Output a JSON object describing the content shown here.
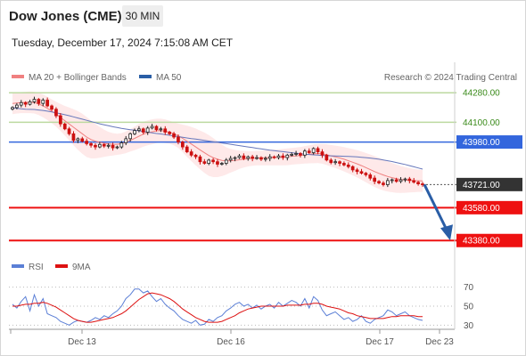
{
  "header": {
    "title": "Dow Jones (CME)",
    "timeframe": "30 MIN",
    "datetime": "Tuesday, December 17, 2024 7:15:08 AM CET"
  },
  "legend": {
    "bollinger": "MA 20 + Bollinger Bands",
    "ma50": "MA 50",
    "rsi": "RSI",
    "ma9": "9MA"
  },
  "copyright": "Research © 2024 Trading Central",
  "colors": {
    "up": "#222222",
    "down": "#cc1111",
    "ma20": "#f08080",
    "band": "#fde2e2",
    "ma50": "#6677bb",
    "support": "#ee1111",
    "resistance_green": "#bcd9a0",
    "resistance_blue": "#3366dd",
    "current": "#333333",
    "arrow": "#2a5ea6",
    "rsi": "#5b7fd6",
    "rsi_ma": "#dd1111"
  },
  "chart_data": [
    {
      "type": "candlestick",
      "ylim": [
        43300,
        44330
      ],
      "x_ticks": [
        "Dec 13",
        "Dec 16",
        "Dec 17",
        "Dec 23"
      ],
      "levels": [
        {
          "label": "44280.00",
          "value": 44280,
          "kind": "resistance_green"
        },
        {
          "label": "44100.00",
          "value": 44100,
          "kind": "resistance_green"
        },
        {
          "label": "43980.00",
          "value": 43980,
          "kind": "resistance_blue"
        },
        {
          "label": "43721.00",
          "value": 43721,
          "kind": "current"
        },
        {
          "label": "43580.00",
          "value": 43580,
          "kind": "support"
        },
        {
          "label": "43380.00",
          "value": 43380,
          "kind": "support"
        }
      ],
      "forecast": {
        "from": 43721,
        "to": 43380,
        "direction": "down"
      },
      "close": [
        44190,
        44205,
        44220,
        44210,
        44225,
        44240,
        44215,
        44235,
        44200,
        44180,
        44140,
        44090,
        44060,
        44030,
        43990,
        44000,
        43985,
        43970,
        43960,
        43950,
        43965,
        43955,
        43960,
        43945,
        43950,
        43975,
        44000,
        44030,
        44050,
        44060,
        44040,
        44065,
        44075,
        44055,
        44060,
        44040,
        44030,
        44010,
        43980,
        43950,
        43920,
        43900,
        43890,
        43860,
        43850,
        43870,
        43860,
        43845,
        43850,
        43870,
        43880,
        43885,
        43895,
        43880,
        43890,
        43880,
        43885,
        43875,
        43880,
        43890,
        43885,
        43895,
        43885,
        43900,
        43905,
        43910,
        43900,
        43925,
        43915,
        43940,
        43920,
        43900,
        43870,
        43855,
        43860,
        43850,
        43840,
        43830,
        43810,
        43800,
        43790,
        43780,
        43760,
        43740,
        43730,
        43720,
        43745,
        43750,
        43740,
        43750,
        43755,
        43745,
        43735,
        43725,
        43721
      ],
      "ma20": [
        44215,
        44218,
        44220,
        44221,
        44222,
        44220,
        44212,
        44200,
        44185,
        44168,
        44150,
        44130,
        44110,
        44090,
        44070,
        44050,
        44030,
        44010,
        43995,
        43985,
        43978,
        43972,
        43968,
        43966,
        43966,
        43970,
        43978,
        43990,
        44002,
        44015,
        44028,
        44036,
        44042,
        44048,
        44050,
        44046,
        44040,
        44030,
        44018,
        44002,
        43985,
        43968,
        43950,
        43932,
        43915,
        43898,
        43885,
        43875,
        43868,
        43865,
        43866,
        43868,
        43872,
        43875,
        43878,
        43880,
        43882,
        43883,
        43884,
        43885,
        43886,
        43887,
        43888,
        43890,
        43893,
        43896,
        43898,
        43902,
        43905,
        43908,
        43910,
        43908,
        43903,
        43896,
        43890,
        43883,
        43875,
        43866,
        43857,
        43847,
        43836,
        43824,
        43812,
        43800,
        43789,
        43779,
        43770,
        43763,
        43757,
        43752,
        43749,
        43747,
        43745,
        43744,
        43743
      ],
      "bb_upper": [
        44280,
        44282,
        44284,
        44286,
        44288,
        44286,
        44280,
        44270,
        44255,
        44240,
        44226,
        44212,
        44200,
        44190,
        44180,
        44168,
        44152,
        44132,
        44110,
        44090,
        44072,
        44055,
        44042,
        44034,
        44030,
        44034,
        44044,
        44058,
        44074,
        44090,
        44104,
        44112,
        44118,
        44122,
        44122,
        44118,
        44110,
        44100,
        44092,
        44086,
        44080,
        44072,
        44062,
        44050,
        44038,
        44022,
        44004,
        43984,
        43964,
        43948,
        43938,
        43932,
        43928,
        43926,
        43925,
        43925,
        43926,
        43928,
        43930,
        43932,
        43934,
        43936,
        43938,
        43941,
        43944,
        43947,
        43950,
        43955,
        43960,
        43965,
        43968,
        43968,
        43966,
        43962,
        43958,
        43954,
        43949,
        43943,
        43937,
        43930,
        43922,
        43913,
        43904,
        43894,
        43884,
        43873,
        43862,
        43852,
        43843,
        43834,
        43827,
        43821,
        43816,
        43812,
        43810
      ],
      "bb_lower": [
        44150,
        44154,
        44156,
        44156,
        44156,
        44154,
        44144,
        44130,
        44115,
        44096,
        44074,
        44048,
        44020,
        43990,
        43960,
        43932,
        43908,
        43888,
        43880,
        43880,
        43884,
        43889,
        43894,
        43898,
        43902,
        43906,
        43912,
        43922,
        43930,
        43940,
        43952,
        43960,
        43966,
        43974,
        43978,
        43974,
        43970,
        43960,
        43944,
        43918,
        43890,
        43864,
        43838,
        43814,
        43792,
        43774,
        43766,
        43766,
        43772,
        43782,
        43794,
        43804,
        43816,
        43824,
        43831,
        43835,
        43838,
        43838,
        43838,
        43838,
        43838,
        43838,
        43838,
        43839,
        43842,
        43845,
        43846,
        43849,
        43850,
        43851,
        43852,
        43848,
        43840,
        43830,
        43822,
        43812,
        43801,
        43789,
        43777,
        43764,
        43750,
        43735,
        43720,
        43706,
        43694,
        43685,
        43678,
        43674,
        43671,
        43670,
        43671,
        43673,
        43674,
        43676,
        43676
      ],
      "ma50": [
        44190,
        44185,
        44182,
        44180,
        44179,
        44178,
        44175,
        44172,
        44168,
        44163,
        44158,
        44152,
        44146,
        44140,
        44133,
        44126,
        44119,
        44112,
        44105,
        44098,
        44091,
        44085,
        44079,
        44073,
        44068,
        44063,
        44059,
        44055,
        44052,
        44048,
        44044,
        44040,
        44036,
        44032,
        44029,
        44025,
        44021,
        44017,
        44013,
        44009,
        44005,
        44001,
        43998,
        43994,
        43990,
        43986,
        43982,
        43978,
        43974,
        43970,
        43966,
        43962,
        43958,
        43954,
        43950,
        43946,
        43942,
        43938,
        43934,
        43930,
        43927,
        43924,
        43921,
        43918,
        43915,
        43912,
        43909,
        43906,
        43904,
        43902,
        43900,
        43898,
        43897,
        43896,
        43895,
        43894,
        43893,
        43892,
        43891,
        43889,
        43887,
        43885,
        43882,
        43879,
        43875,
        43871,
        43866,
        43861,
        43855,
        43849,
        43843,
        43836,
        43829,
        43822,
        43815
      ]
    },
    {
      "type": "line",
      "name": "RSI",
      "ylim": [
        20,
        80
      ],
      "y_ticks": [
        70,
        50,
        30
      ],
      "rsi": [
        52,
        48,
        55,
        60,
        45,
        62,
        50,
        58,
        42,
        40,
        38,
        34,
        32,
        30,
        33,
        35,
        34,
        33,
        35,
        38,
        36,
        40,
        38,
        42,
        45,
        50,
        58,
        62,
        68,
        68,
        64,
        66,
        60,
        55,
        58,
        52,
        48,
        45,
        40,
        36,
        34,
        32,
        35,
        30,
        31,
        36,
        34,
        38,
        40,
        45,
        48,
        52,
        54,
        50,
        52,
        48,
        51,
        47,
        50,
        52,
        48,
        54,
        50,
        53,
        56,
        54,
        50,
        58,
        48,
        60,
        56,
        46,
        40,
        42,
        44,
        40,
        36,
        38,
        34,
        36,
        40,
        34,
        32,
        36,
        38,
        40,
        46,
        44,
        40,
        42,
        44,
        40,
        38,
        36,
        35
      ],
      "ma9": [
        50,
        50,
        51,
        52,
        52,
        53,
        53,
        54,
        53,
        51,
        49,
        46,
        43,
        40,
        37,
        35,
        34,
        33,
        33,
        34,
        35,
        36,
        37,
        38,
        40,
        42,
        45,
        49,
        53,
        57,
        60,
        63,
        64,
        63,
        62,
        60,
        58,
        55,
        51,
        47,
        44,
        41,
        38,
        36,
        34,
        33,
        33,
        33,
        34,
        36,
        38,
        40,
        43,
        45,
        47,
        48,
        49,
        50,
        50,
        50,
        50,
        50,
        50,
        51,
        51,
        51,
        51,
        52,
        52,
        53,
        53,
        52,
        50,
        49,
        48,
        47,
        45,
        43,
        42,
        40,
        39,
        38,
        37,
        37,
        37,
        37,
        38,
        39,
        39,
        40,
        40,
        40,
        40,
        39,
        39
      ]
    }
  ]
}
